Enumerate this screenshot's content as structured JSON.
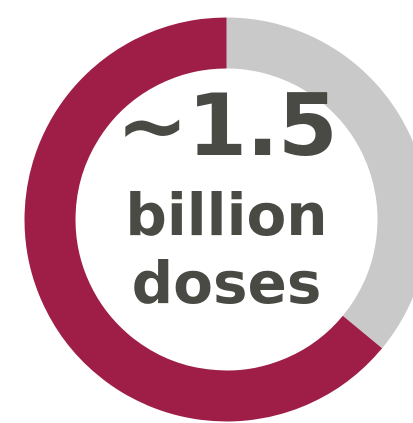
{
  "chart_data": {
    "type": "pie",
    "style": "donut",
    "slices": [
      {
        "label": "",
        "value": 0.64,
        "color": "#9e1e48"
      },
      {
        "label": "",
        "value": 0.36,
        "color": "#c9c9c9"
      }
    ],
    "center_label": {
      "line1": "~1.5",
      "line2": "billion",
      "line3": "doses"
    },
    "legend": "none",
    "grid": false
  }
}
